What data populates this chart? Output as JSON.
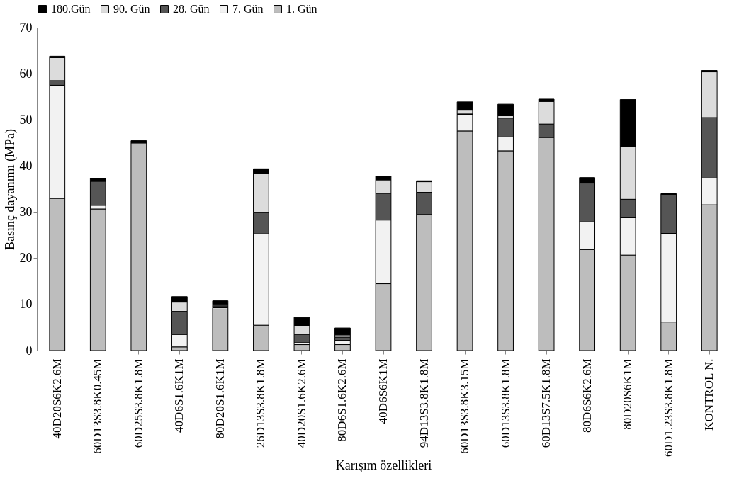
{
  "chart_data": {
    "type": "bar",
    "stacked": true,
    "xlabel": "Karışım özellikleri",
    "ylabel": "Basınç dayanımı (MPa)",
    "categories": [
      "40D20S6K2.6M",
      "60D13S3.8K0.45M",
      "60D25S3.8K1.8M",
      "40D6S1.6K1M",
      "80D20S1.6K1M",
      "26D13S3.8K1.8M",
      "40D20S1.6K2.6M",
      "80D6S1.6K2.6M",
      "40D6S6K1M",
      "94D13S3.8K1.8M",
      "60D13S3.8K3.15M",
      "60D13S3.8K1.8M",
      "60D13S7.5K1.8M",
      "80D6S6K2.6M",
      "80D20S6K1M",
      "60D1.23S3.8K1.8M",
      "KONTROL N."
    ],
    "series": [
      {
        "name": "1. Gün",
        "color": "#bdbdbd",
        "values": [
          33,
          30.7,
          45,
          0.8,
          9,
          5.5,
          1.3,
          1.3,
          14.5,
          29.5,
          47.6,
          43.3,
          46.2,
          21.9,
          20.7,
          6.2,
          31.6
        ]
      },
      {
        "name": "7. Gün",
        "color": "#f2f2f2",
        "values": [
          24.5,
          0.8,
          0,
          2.7,
          0.3,
          19.8,
          0.4,
          0.9,
          13.8,
          null,
          3.6,
          3.0,
          0,
          6.0,
          8.1,
          19.2,
          5.8
        ]
      },
      {
        "name": "28. Gün",
        "color": "#555555",
        "values": [
          1,
          5.2,
          0,
          5,
          0.4,
          4.6,
          1.8,
          0.7,
          5.8,
          4.8,
          0.3,
          4.1,
          2.9,
          8.4,
          4.0,
          8.3,
          13.1
        ]
      },
      {
        "name": "90. Gün",
        "color": "#dcdcdc",
        "values": [
          5,
          0,
          0,
          2,
          0.4,
          8.4,
          1.8,
          0.5,
          2.9,
          2.3,
          0.6,
          0.5,
          4.9,
          null,
          11.5,
          0,
          9.9
        ]
      },
      {
        "name": "180.Gün",
        "color": "#000000",
        "values": [
          0.3,
          0.6,
          0.5,
          1.2,
          0.7,
          1.1,
          1.9,
          1.5,
          0.8,
          0.2,
          1.8,
          2.5,
          0.5,
          1.2,
          10.1,
          0.3,
          0.3
        ]
      }
    ],
    "ylim": [
      0,
      70
    ],
    "yticks": [
      0,
      10,
      20,
      30,
      40,
      50,
      60,
      70
    ],
    "grid": false,
    "legend": "top"
  }
}
